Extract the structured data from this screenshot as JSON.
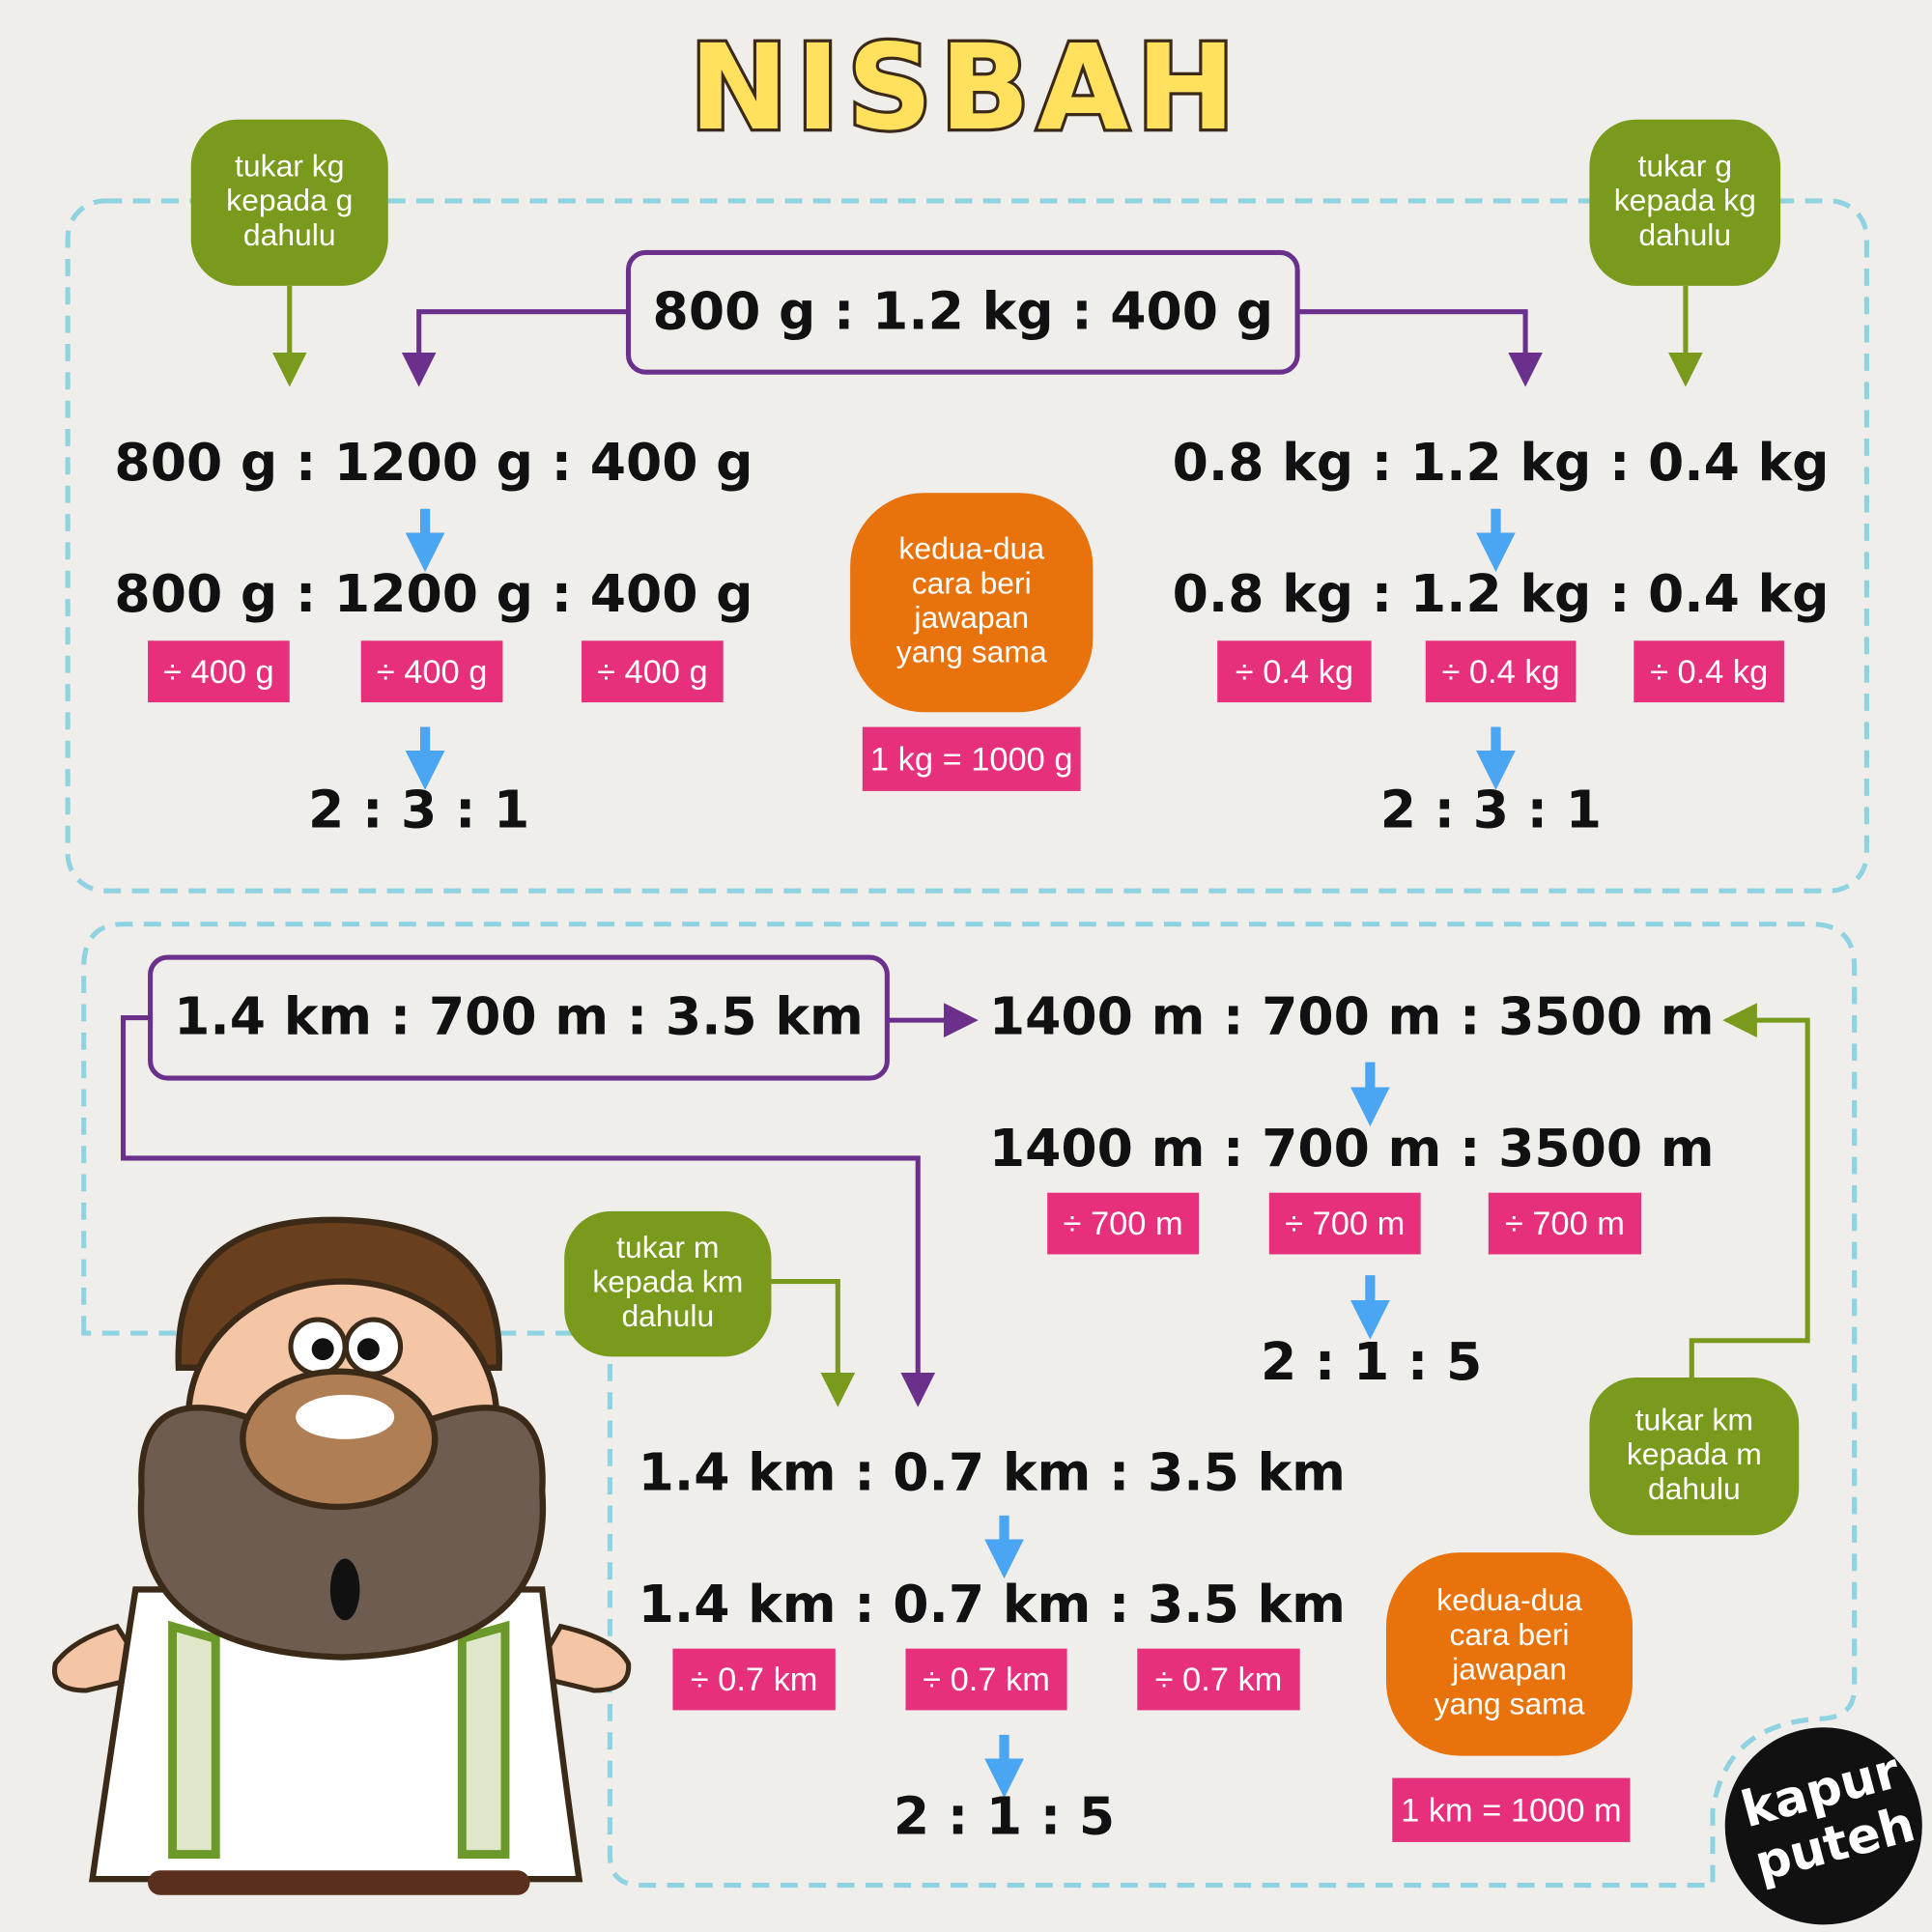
{
  "title": "NISBAH",
  "sections": [
    {
      "question": "800 g : 1.2 kg : 400 g",
      "methods": [
        {
          "note": [
            "tukar kg",
            "kepada g",
            "dahulu"
          ],
          "converted": "800 g : 1200 g : 400 g",
          "divisors": [
            "÷ 400 g",
            "÷ 400 g",
            "÷ 400 g"
          ],
          "answer": "2 : 3 : 1"
        },
        {
          "note": [
            "tukar g",
            "kepada kg",
            "dahulu"
          ],
          "converted": "0.8 kg : 1.2 kg : 0.4 kg",
          "divisors": [
            "÷ 0.4 kg",
            "÷ 0.4 kg",
            "÷ 0.4 kg"
          ],
          "answer": "2 : 3 : 1"
        }
      ],
      "conclusion": [
        "kedua-dua",
        "cara beri",
        "jawapan",
        "yang sama"
      ],
      "conversion": "1 kg = 1000 g"
    },
    {
      "question": "1.4 km : 700 m : 3.5 km",
      "methods": [
        {
          "note": [
            "tukar km",
            "kepada m",
            "dahulu"
          ],
          "converted": "1400 m : 700 m : 3500 m",
          "divisors": [
            "÷ 700 m",
            "÷ 700 m",
            "÷ 700 m"
          ],
          "answer": "2 : 1 : 5"
        },
        {
          "note": [
            "tukar m",
            "kepada km",
            "dahulu"
          ],
          "converted": "1.4 km : 0.7 km : 3.5 km",
          "divisors": [
            "÷ 0.7 km",
            "÷ 0.7 km",
            "÷ 0.7 km"
          ],
          "answer": "2 : 1 : 5"
        }
      ],
      "conclusion": [
        "kedua-dua",
        "cara beri",
        "jawapan",
        "yang sama"
      ],
      "conversion": "1 km = 1000 m"
    }
  ],
  "logo": [
    "kapur",
    "puteh"
  ]
}
